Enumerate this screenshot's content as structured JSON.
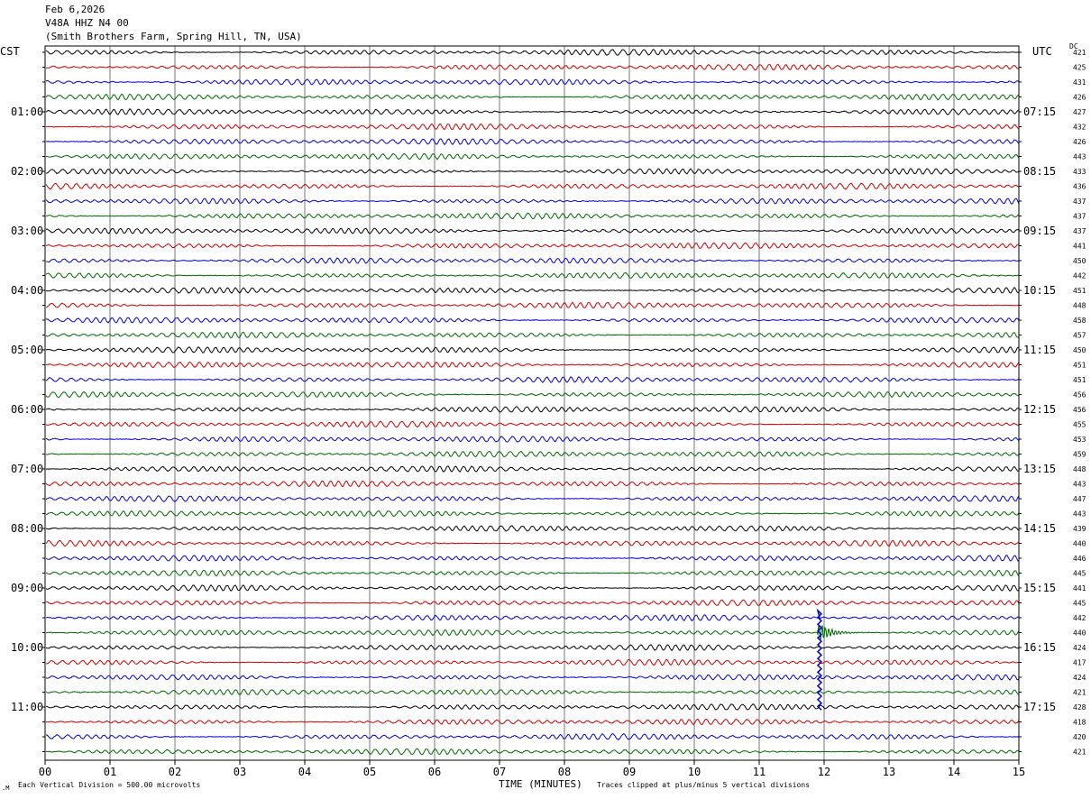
{
  "header": {
    "date": "Feb 6,2026",
    "station": "V48A HHZ N4 00",
    "location": "(Smith Brothers Farm, Spring Hill, TN, USA)"
  },
  "left_timezone": "CST",
  "right_timezone": "UTC",
  "dc_label": "DC",
  "footer": {
    "scale_note": "Each Vertical Division = 500.00 microvolts",
    "x_title": "TIME (MINUTES)",
    "clip_note": "Traces clipped at plus/minus 5 vertical divisions"
  },
  "chart_data": {
    "type": "line",
    "chart_kind": "helicorder seismogram",
    "xlim": [
      0,
      15
    ],
    "x_ticks": [
      "00",
      "01",
      "02",
      "03",
      "04",
      "05",
      "06",
      "07",
      "08",
      "09",
      "10",
      "11",
      "12",
      "13",
      "14",
      "15"
    ],
    "trace_minutes": 15,
    "trace_count": 48,
    "trace_colors": [
      "#000000",
      "#cc0000",
      "#0000cc",
      "#006600"
    ],
    "left_hour_labels": [
      "01:00",
      "02:00",
      "03:00",
      "04:00",
      "05:00",
      "06:00",
      "07:00",
      "08:00",
      "09:00",
      "10:00",
      "11:00"
    ],
    "right_hour_labels": [
      "07:15",
      "08:15",
      "09:15",
      "10:15",
      "11:15",
      "12:15",
      "13:15",
      "14:15",
      "15:15",
      "16:15",
      "17:15"
    ],
    "dc_offsets": [
      421,
      425,
      431,
      426,
      427,
      432,
      426,
      443,
      433,
      436,
      437,
      437,
      437,
      441,
      450,
      442,
      451,
      448,
      458,
      457,
      450,
      451,
      451,
      456,
      456,
      455,
      453,
      459,
      448,
      443,
      447,
      443,
      439,
      440,
      446,
      445,
      441,
      445,
      442,
      440,
      424,
      417,
      424,
      421,
      428,
      418,
      420,
      421
    ],
    "event": {
      "trace_index": 39,
      "minute": 11.93,
      "description_visible": false
    },
    "grid": true
  }
}
